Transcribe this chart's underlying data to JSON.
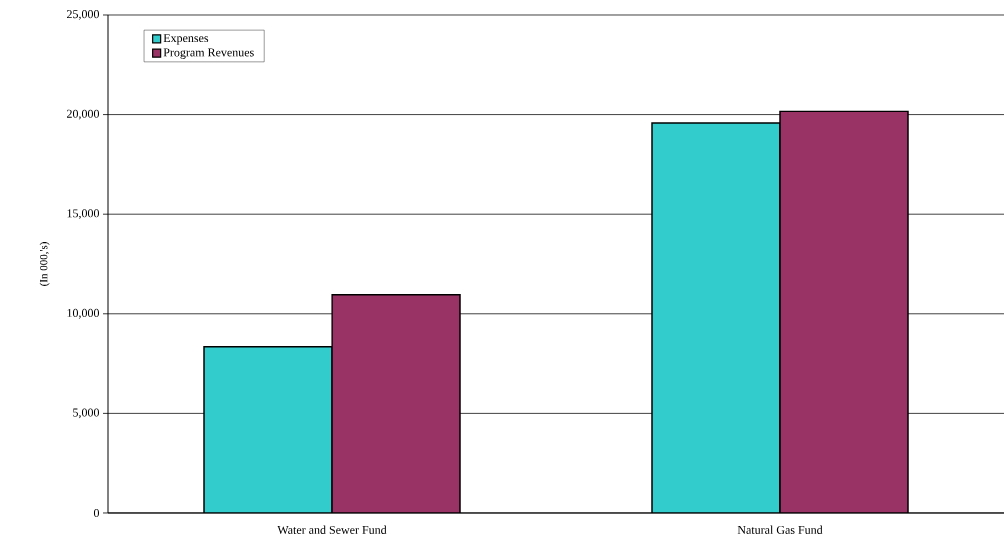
{
  "chart_data": {
    "type": "bar",
    "ylabel": "(In 000,'s)",
    "categories": [
      "Water and Sewer Fund",
      "Natural Gas Fund"
    ],
    "series": [
      {
        "name": "Expenses",
        "color": "#33cccc",
        "values": [
          8350,
          19580
        ]
      },
      {
        "name": "Program Revenues",
        "color": "#993366",
        "values": [
          10960,
          20170
        ]
      }
    ],
    "ylim": [
      0,
      25000
    ],
    "yticks": [
      {
        "value": 0,
        "label": "0"
      },
      {
        "value": 5000,
        "label": "5,000"
      },
      {
        "value": 10000,
        "label": "10,000"
      },
      {
        "value": 15000,
        "label": "15,000"
      },
      {
        "value": 20000,
        "label": "20,000"
      },
      {
        "value": 25000,
        "label": "25,000"
      }
    ],
    "grid": "y",
    "legend": "top left"
  }
}
